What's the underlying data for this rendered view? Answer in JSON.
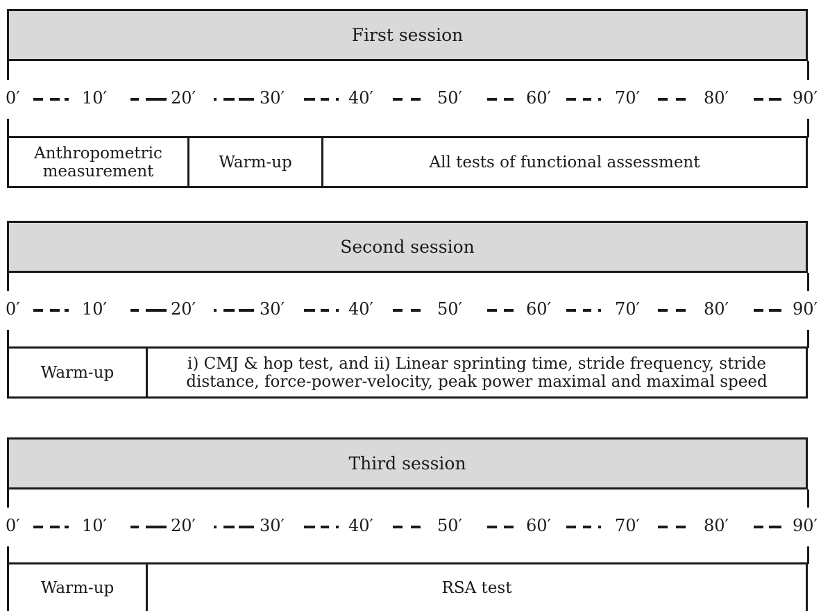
{
  "sessions": [
    {
      "title": "First session",
      "blocks": [
        {
          "label": "Anthropometric measurement",
          "minutes": 20
        },
        {
          "label": "Warm-up",
          "minutes": 15
        },
        {
          "label": "All tests of functional assessment",
          "minutes": 55
        }
      ]
    },
    {
      "title": "Second session",
      "blocks": [
        {
          "label": "Warm-up",
          "minutes": 15
        },
        {
          "label": "i) CMJ & hop test, and ii) Linear sprinting time, stride frequency, stride distance, force-power-velocity, peak power maximal and maximal speed",
          "minutes": 75
        }
      ]
    },
    {
      "title": "Third session",
      "blocks": [
        {
          "label": "Warm-up",
          "minutes": 15
        },
        {
          "label": "RSA test",
          "minutes": 75
        }
      ]
    }
  ],
  "timeline_labels": [
    "0′",
    "10′",
    "20′",
    "30′",
    "40′",
    "50′",
    "60′",
    "70′",
    "80′",
    "90′"
  ]
}
